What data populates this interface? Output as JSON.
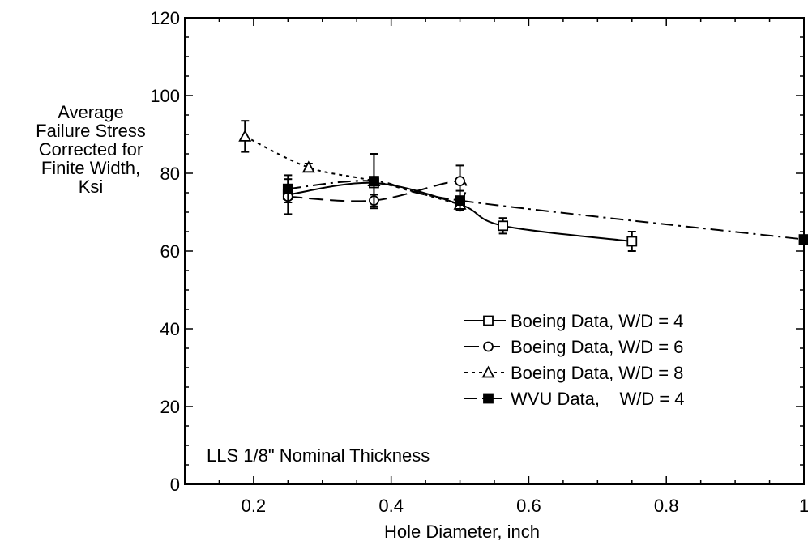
{
  "chart_data": {
    "type": "line",
    "title": "",
    "xlabel": "Hole Diameter, inch",
    "ylabel_lines": [
      "Average",
      "Failure Stress",
      "Corrected for",
      "Finite Width,",
      "Ksi"
    ],
    "xlim": [
      0.1,
      1.0
    ],
    "ylim": [
      0,
      120
    ],
    "x_ticks": [
      0.2,
      0.4,
      0.6,
      0.8,
      1
    ],
    "x_tick_labels": [
      "0.2",
      "0.4",
      "0.6",
      "0.8",
      "1"
    ],
    "y_ticks": [
      0,
      20,
      40,
      60,
      80,
      100,
      120
    ],
    "y_tick_labels": [
      "0",
      "20",
      "40",
      "60",
      "80",
      "100",
      "120"
    ],
    "grid": false,
    "legend_position": "right",
    "annotation": "LLS 1/8\" Nominal Thickness",
    "series": [
      {
        "name": "Boeing Data, W/D = 4",
        "marker": "open-square",
        "dash": "solid",
        "points": [
          {
            "x": 0.25,
            "y": 74.5,
            "err": 0
          },
          {
            "x": 0.375,
            "y": 77.5,
            "err": 0
          },
          {
            "x": 0.5,
            "y": 72,
            "err": 0
          },
          {
            "x": 0.5625,
            "y": 66.5,
            "err": 2
          },
          {
            "x": 0.75,
            "y": 62.5,
            "err": 2.5
          }
        ]
      },
      {
        "name": "Boeing Data, W/D = 6",
        "marker": "open-circle",
        "dash": "long-dash",
        "points": [
          {
            "x": 0.25,
            "y": 74,
            "err": 4.5
          },
          {
            "x": 0.375,
            "y": 73,
            "err": 1.5
          },
          {
            "x": 0.5,
            "y": 78,
            "err": 4
          },
          {
            "x": 0.5,
            "y": 71.5,
            "err": 0
          }
        ]
      },
      {
        "name": "Boeing Data, W/D = 8",
        "marker": "open-triangle",
        "dash": "dotted",
        "points": [
          {
            "x": 0.1875,
            "y": 89.5,
            "err": 4
          },
          {
            "x": 0.28,
            "y": 81.5,
            "err": 1
          },
          {
            "x": 0.375,
            "y": 78,
            "err": 0
          },
          {
            "x": 0.5,
            "y": 72,
            "err": 0
          }
        ]
      },
      {
        "name": "WVU Data,    W/D = 4",
        "marker": "filled-square",
        "dash": "dash-dot",
        "points": [
          {
            "x": 0.25,
            "y": 76,
            "err": 3.5
          },
          {
            "x": 0.375,
            "y": 78,
            "err": 7
          },
          {
            "x": 0.5,
            "y": 73,
            "err": 2.5
          },
          {
            "x": 1.0,
            "y": 63,
            "err": 0
          }
        ]
      }
    ]
  }
}
